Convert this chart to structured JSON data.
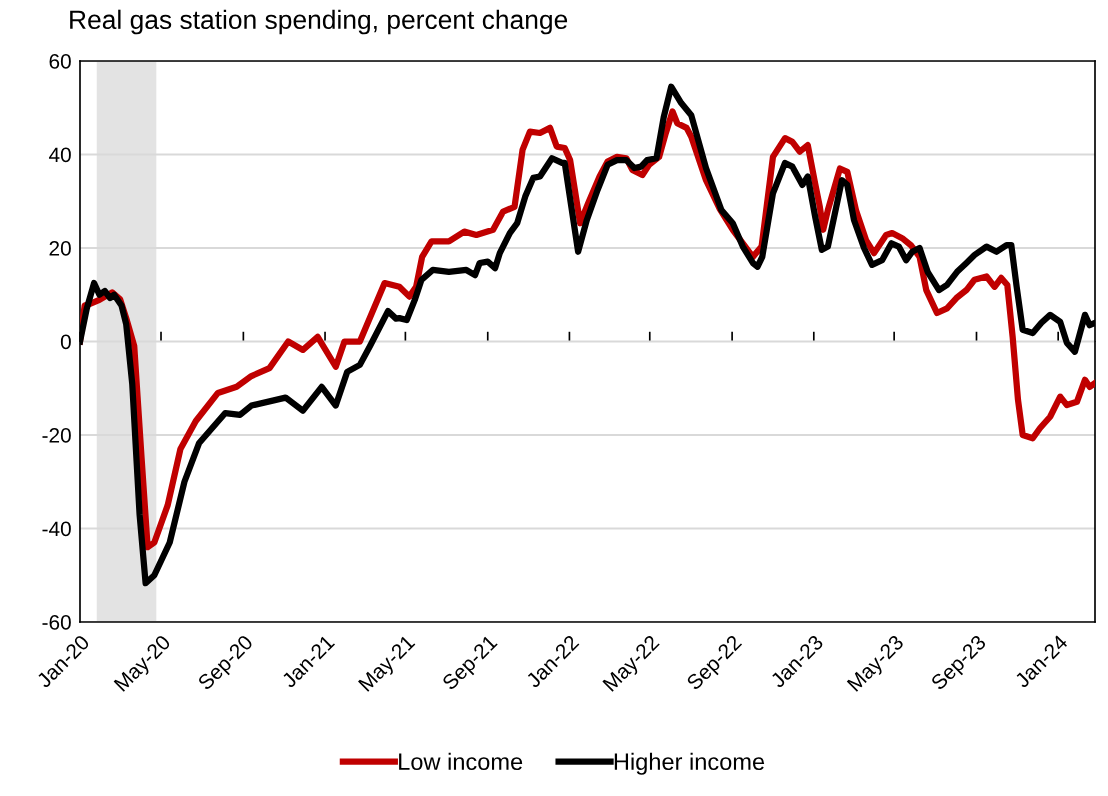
{
  "chart_data": {
    "type": "line",
    "title": "Real gas station spending, percent change",
    "xlim": [
      "2020-01-01",
      "2024-02-25"
    ],
    "xticks": [
      {
        "value": "2020-01-01",
        "label": "Jan-20"
      },
      {
        "value": "2020-05-01",
        "label": "May-20"
      },
      {
        "value": "2020-09-01",
        "label": "Sep-20"
      },
      {
        "value": "2021-01-01",
        "label": "Jan-21"
      },
      {
        "value": "2021-05-01",
        "label": "May-21"
      },
      {
        "value": "2021-09-01",
        "label": "Sep-21"
      },
      {
        "value": "2022-01-01",
        "label": "Jan-22"
      },
      {
        "value": "2022-05-01",
        "label": "May-22"
      },
      {
        "value": "2022-09-01",
        "label": "Sep-22"
      },
      {
        "value": "2023-01-01",
        "label": "Jan-23"
      },
      {
        "value": "2023-05-01",
        "label": "May-23"
      },
      {
        "value": "2023-09-01",
        "label": "Sep-23"
      },
      {
        "value": "2024-01-01",
        "label": "Jan-24"
      }
    ],
    "ylim": [
      -60,
      60
    ],
    "yticks": [
      -60,
      -40,
      -20,
      0,
      20,
      40,
      60
    ],
    "grid": "y",
    "legend": "bottom",
    "marker": "none",
    "line_style": "solid",
    "bands": [
      {
        "axis": "x",
        "from": "2020-01-26",
        "to": "2020-04-24",
        "color": "#e3e3e3"
      }
    ],
    "series": [
      {
        "name": "Low income",
        "color": "#c00000",
        "x": [
          "2020-01-01",
          "2020-01-08",
          "2020-01-15",
          "2020-01-30",
          "2020-02-18",
          "2020-03-01",
          "2020-03-10",
          "2020-03-22",
          "2020-04-02",
          "2020-04-11",
          "2020-04-21",
          "2020-05-11",
          "2020-05-30",
          "2020-06-22",
          "2020-07-25",
          "2020-08-22",
          "2020-09-13",
          "2020-10-10",
          "2020-11-07",
          "2020-11-29",
          "2020-12-21",
          "2021-01-17",
          "2021-01-30",
          "2021-02-22",
          "2021-03-31",
          "2021-04-22",
          "2021-05-07",
          "2021-05-17",
          "2021-05-26",
          "2021-06-09",
          "2021-07-05",
          "2021-07-28",
          "2021-08-15",
          "2021-09-09",
          "2021-09-24",
          "2021-10-11",
          "2021-10-23",
          "2021-11-03",
          "2021-11-18",
          "2021-12-03",
          "2021-12-13",
          "2021-12-25",
          "2022-01-02",
          "2022-01-17",
          "2022-01-29",
          "2022-02-15",
          "2022-02-27",
          "2022-03-13",
          "2022-03-27",
          "2022-04-05",
          "2022-04-20",
          "2022-04-30",
          "2022-05-15",
          "2022-05-25",
          "2022-06-04",
          "2022-06-11",
          "2022-06-25",
          "2022-07-02",
          "2022-07-24",
          "2022-08-13",
          "2022-09-02",
          "2022-09-17",
          "2022-10-02",
          "2022-10-15",
          "2022-11-01",
          "2022-11-19",
          "2022-11-30",
          "2022-12-11",
          "2022-12-23",
          "2023-01-03",
          "2023-01-10",
          "2023-01-15",
          "2023-01-22",
          "2023-02-09",
          "2023-02-20",
          "2023-03-05",
          "2023-03-20",
          "2023-04-01",
          "2023-04-19",
          "2023-04-28",
          "2023-05-13",
          "2023-05-26",
          "2023-06-08",
          "2023-06-18",
          "2023-07-04",
          "2023-07-19",
          "2023-08-02",
          "2023-08-17",
          "2023-08-29",
          "2023-09-16",
          "2023-09-28",
          "2023-10-08",
          "2023-10-17",
          "2023-10-25",
          "2023-11-02",
          "2023-11-09",
          "2023-11-24",
          "2023-12-05",
          "2023-12-20",
          "2024-01-04",
          "2024-01-14",
          "2024-01-29",
          "2024-02-10",
          "2024-02-17",
          "2024-02-25"
        ],
        "values": [
          0,
          7.7,
          8,
          8.9,
          10.5,
          9,
          5,
          -1,
          -25,
          -44,
          -43,
          -35,
          -23,
          -17,
          -11,
          -9.7,
          -7.4,
          -5.7,
          0,
          -1.8,
          1,
          -5.4,
          0,
          0,
          12.5,
          11.7,
          9.6,
          11.7,
          18.1,
          21.4,
          21.4,
          23.5,
          22.8,
          23.9,
          27.8,
          28.8,
          41,
          44.9,
          44.6,
          45.7,
          41.7,
          41.4,
          38.8,
          25.3,
          29.6,
          35.3,
          38.5,
          39.5,
          39.2,
          36.7,
          35.6,
          37.8,
          39.5,
          44.6,
          49.2,
          46.7,
          45.7,
          43.8,
          34.5,
          28.5,
          23.9,
          21,
          18.1,
          20.3,
          39.5,
          43.5,
          42.7,
          40.6,
          42,
          33.8,
          28.8,
          23.9,
          28.1,
          37,
          36.3,
          28.1,
          21.7,
          18.9,
          22.8,
          23.2,
          22.1,
          20.6,
          18.1,
          11,
          6.1,
          7.1,
          9.3,
          11,
          13.2,
          13.9,
          11.7,
          13.6,
          12.1,
          1,
          -12.5,
          -20,
          -20.7,
          -18.5,
          -16.1,
          -11.8,
          -13.6,
          -12.9,
          -8.2,
          -9.7,
          -8.9
        ]
      },
      {
        "name": "Higher income",
        "color": "#000000",
        "x": [
          "2020-01-01",
          "2020-01-11",
          "2020-01-22",
          "2020-01-30",
          "2020-02-07",
          "2020-02-15",
          "2020-02-21",
          "2020-03-03",
          "2020-03-10",
          "2020-03-19",
          "2020-03-30",
          "2020-04-08",
          "2020-04-21",
          "2020-05-14",
          "2020-06-05",
          "2020-06-27",
          "2020-08-05",
          "2020-08-27",
          "2020-09-13",
          "2020-11-03",
          "2020-11-29",
          "2020-12-27",
          "2021-01-17",
          "2021-02-03",
          "2021-02-22",
          "2021-03-09",
          "2021-04-05",
          "2021-04-17",
          "2021-04-22",
          "2021-05-03",
          "2021-05-15",
          "2021-05-25",
          "2021-06-11",
          "2021-07-05",
          "2021-07-31",
          "2021-08-13",
          "2021-08-20",
          "2021-09-01",
          "2021-09-12",
          "2021-09-19",
          "2021-10-04",
          "2021-10-15",
          "2021-10-27",
          "2021-11-08",
          "2021-11-18",
          "2021-12-06",
          "2021-12-21",
          "2021-12-25",
          "2022-01-14",
          "2022-01-27",
          "2022-02-12",
          "2022-02-27",
          "2022-03-13",
          "2022-03-27",
          "2022-04-08",
          "2022-04-18",
          "2022-04-27",
          "2022-05-11",
          "2022-05-22",
          "2022-06-02",
          "2022-06-17",
          "2022-07-02",
          "2022-07-24",
          "2022-08-16",
          "2022-09-02",
          "2022-09-17",
          "2022-10-02",
          "2022-10-09",
          "2022-10-16",
          "2022-11-01",
          "2022-11-19",
          "2022-11-30",
          "2022-12-15",
          "2022-12-23",
          "2023-01-03",
          "2023-01-13",
          "2023-01-22",
          "2023-02-12",
          "2023-02-20",
          "2023-03-02",
          "2023-03-17",
          "2023-03-29",
          "2023-04-13",
          "2023-04-27",
          "2023-05-08",
          "2023-05-19",
          "2023-05-28",
          "2023-06-08",
          "2023-06-20",
          "2023-07-07",
          "2023-07-19",
          "2023-08-03",
          "2023-08-17",
          "2023-08-29",
          "2023-09-16",
          "2023-10-01",
          "2023-10-16",
          "2023-10-23",
          "2023-10-31",
          "2023-11-09",
          "2023-11-24",
          "2023-12-07",
          "2023-12-20",
          "2024-01-04",
          "2024-01-14",
          "2024-01-26",
          "2024-02-10",
          "2024-02-17",
          "2024-02-25"
        ],
        "values": [
          0,
          7,
          12.5,
          10,
          10.8,
          9.3,
          10,
          7.7,
          3.7,
          -9,
          -37,
          -51.7,
          -50,
          -43,
          -30,
          -21.7,
          -15.3,
          -15.7,
          -13.7,
          -12,
          -14.8,
          -9.7,
          -13.7,
          -6.5,
          -5,
          -1,
          6.5,
          4.9,
          5,
          4.6,
          8.9,
          13.2,
          15.3,
          14.9,
          15.3,
          14.2,
          16.8,
          17.1,
          15.7,
          18.9,
          23.2,
          25.3,
          31,
          35,
          35.3,
          39.2,
          38.2,
          38.2,
          19.2,
          26,
          32.4,
          37.8,
          38.8,
          38.8,
          37.1,
          37.4,
          38.8,
          39.2,
          48.1,
          54.5,
          51,
          48.4,
          37.1,
          28.1,
          25.3,
          20.3,
          16.8,
          16,
          18.1,
          31.7,
          38.2,
          37.4,
          33.5,
          35.3,
          26.7,
          19.6,
          20.3,
          34.5,
          33.5,
          26,
          20,
          16.4,
          17.4,
          21,
          20.3,
          17.4,
          19.2,
          20,
          14.9,
          11,
          12.1,
          14.9,
          16.8,
          18.5,
          20.3,
          19.2,
          20.6,
          20.6,
          11.7,
          2.5,
          1.8,
          4,
          5.7,
          4.2,
          -0.3,
          -2.2,
          5.7,
          3.5,
          4
        ]
      }
    ]
  }
}
